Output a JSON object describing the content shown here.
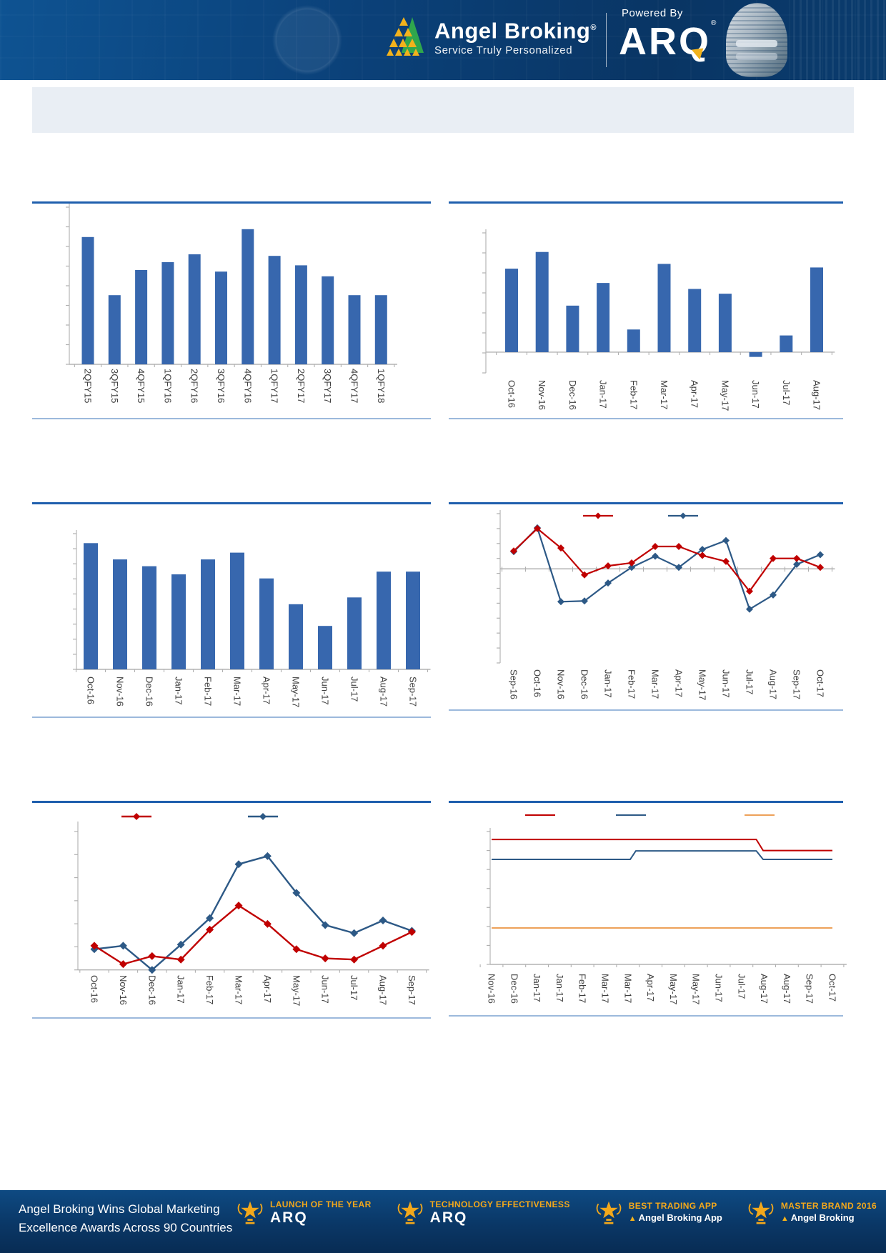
{
  "header": {
    "brand_name": "Angel Broking",
    "registered_mark": "®",
    "tagline": "Service Truly Personalized",
    "powered_by": "Powered By",
    "arq_logo": "ARQ",
    "colors": {
      "navy": "#0a3c6e",
      "gold": "#f2b21c",
      "green": "#2fa64d"
    }
  },
  "banner": {
    "text": ""
  },
  "chart_data": [
    {
      "id": "quarterly-bar-chart",
      "type": "bar",
      "title": "",
      "categories": [
        "2QFY15",
        "3QFY15",
        "4QFY15",
        "1QFY16",
        "2QFY16",
        "3QFY16",
        "4QFY16",
        "1QFY17",
        "2QFY17",
        "3QFY17",
        "4QFY17",
        "1QFY18"
      ],
      "values": [
        81,
        44,
        60,
        65,
        70,
        59,
        86,
        69,
        63,
        56,
        44,
        44
      ],
      "ylim": [
        0,
        100
      ],
      "bar_color": "#3767ae",
      "grid": false,
      "y_tick_labels_visible": false
    },
    {
      "id": "monthly-bar-chart-1",
      "type": "bar",
      "title": "",
      "categories": [
        "Oct-16",
        "Nov-16",
        "Dec-16",
        "Jan-17",
        "Feb-17",
        "Mar-17",
        "Apr-17",
        "May-17",
        "Jun-17",
        "Jul-17",
        "Aug-17"
      ],
      "values": [
        70,
        84,
        39,
        58,
        19,
        74,
        53,
        49,
        -4,
        14,
        71
      ],
      "ylim": [
        -17.4,
        100
      ],
      "bar_color": "#3767ae",
      "grid": false,
      "y_tick_labels_visible": false
    },
    {
      "id": "monthly-bar-chart-2",
      "type": "bar",
      "title": "",
      "categories": [
        "Oct-16",
        "Nov-16",
        "Dec-16",
        "Jan-17",
        "Feb-17",
        "Mar-17",
        "Apr-17",
        "May-17",
        "Jun-17",
        "Jul-17",
        "Aug-17",
        "Sep-17"
      ],
      "values": [
        93,
        81,
        76,
        70,
        81,
        86,
        67,
        48,
        32,
        53,
        72,
        72
      ],
      "ylim": [
        0,
        100
      ],
      "bar_color": "#3767ae",
      "grid": false,
      "y_tick_labels_visible": false
    },
    {
      "id": "two-series-line-chart-1",
      "type": "line",
      "title": "",
      "categories": [
        "Sep-16",
        "Oct-16",
        "Nov-16",
        "Dec-16",
        "Jan-17",
        "Feb-17",
        "Mar-17",
        "Apr-17",
        "May-17",
        "Jun-17",
        "Jul-17",
        "Aug-17",
        "Sep-17",
        "Oct-17"
      ],
      "series": [
        {
          "name": "",
          "color": "#c00000",
          "values": [
            1.2,
            2.7,
            1.4,
            -0.4,
            0.2,
            0.4,
            1.5,
            1.5,
            0.9,
            0.5,
            -1.5,
            0.7,
            0.7,
            0.1
          ]
        },
        {
          "name": "",
          "color": "#2d5986",
          "values": [
            1.15,
            2.75,
            -2.2,
            -2.15,
            -0.95,
            0.1,
            0.85,
            0.1,
            1.3,
            1.9,
            -2.7,
            -1.75,
            0.3,
            0.95
          ]
        }
      ],
      "ylim": [
        -6.3,
        3.7
      ],
      "zero_line": true,
      "legend_position": "top",
      "legend_labels_visible": false
    },
    {
      "id": "two-series-line-chart-2",
      "type": "line",
      "title": "",
      "categories": [
        "Oct-16",
        "Nov-16",
        "Dec-16",
        "Jan-17",
        "Feb-17",
        "Mar-17",
        "Apr-17",
        "May-17",
        "Jun-17",
        "Jul-17",
        "Aug-17",
        "Sep-17"
      ],
      "series": [
        {
          "name": "",
          "color": "#c00000",
          "values": [
            1.05,
            0.25,
            0.6,
            0.45,
            1.75,
            2.8,
            2.0,
            0.9,
            0.5,
            0.45,
            1.05,
            1.65
          ]
        },
        {
          "name": "",
          "color": "#2d5986",
          "values": [
            0.9,
            1.05,
            0.0,
            1.1,
            2.25,
            4.6,
            4.95,
            3.35,
            1.95,
            1.6,
            2.15,
            1.7
          ]
        }
      ],
      "ylim": [
        0,
        6.3
      ],
      "legend_position": "top",
      "legend_labels_visible": false
    },
    {
      "id": "three-series-step-line-chart",
      "type": "line",
      "title": "",
      "categories": [
        "Nov-16",
        "Dec-16",
        "Jan-17",
        "Jan-17",
        "Feb-17",
        "Mar-17",
        "Mar-17",
        "Apr-17",
        "May-17",
        "May-17",
        "Jun-17",
        "Jul-17",
        "Aug-17",
        "Aug-17",
        "Sep-17",
        "Oct-17"
      ],
      "series": [
        {
          "name": "",
          "color": "#c00000",
          "points": [
            {
              "x": 0,
              "v": 6.58
            },
            {
              "x": 11.65,
              "v": 6.58
            },
            {
              "x": 11.95,
              "v": 6.0
            },
            {
              "x": 15,
              "v": 6.0
            }
          ]
        },
        {
          "name": "",
          "color": "#2d5986",
          "points": [
            {
              "x": 0,
              "v": 5.53
            },
            {
              "x": 6.1,
              "v": 5.53
            },
            {
              "x": 6.35,
              "v": 5.98
            },
            {
              "x": 11.65,
              "v": 5.98
            },
            {
              "x": 11.95,
              "v": 5.53
            },
            {
              "x": 15,
              "v": 5.53
            }
          ]
        },
        {
          "name": "",
          "color": "#eda159",
          "points": [
            {
              "x": 0,
              "v": 1.92
            },
            {
              "x": 15,
              "v": 1.92
            }
          ]
        }
      ],
      "ylim": [
        0,
        7
      ],
      "legend_position": "top",
      "legend_labels_visible": false
    }
  ],
  "footer": {
    "headline_line1": "Angel Broking Wins Global Marketing",
    "headline_line2": "Excellence Awards Across 90 Countries",
    "awards": [
      {
        "title": "LAUNCH OF THE YEAR",
        "brand": "ARQ"
      },
      {
        "title": "TECHNOLOGY EFFECTIVENESS",
        "brand": "ARQ"
      },
      {
        "title": "BEST TRADING APP",
        "brand": "Angel Broking App"
      },
      {
        "title": "MASTER BRAND 2016",
        "brand": "Angel Broking"
      }
    ]
  }
}
